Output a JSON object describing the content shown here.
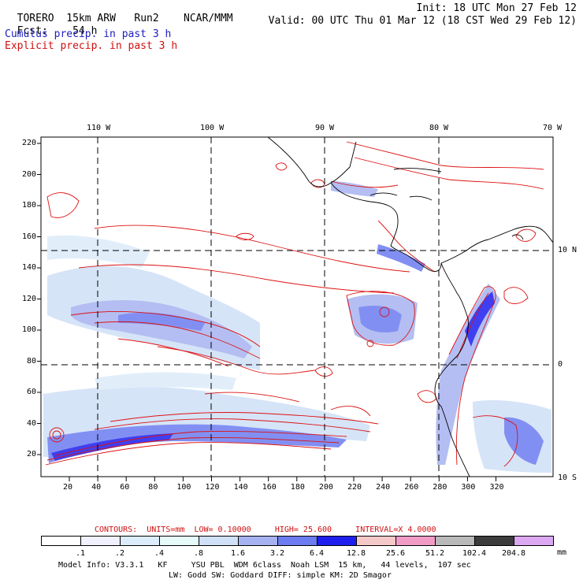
{
  "header": {
    "model": "TORERO",
    "resolution": "15km ARW",
    "run": "Run2",
    "org": "NCAR/MMM",
    "init_text": "Init: 18 UTC Mon 27 Feb 12",
    "fcst_label": "Fcst:",
    "fcst_value": "54 h",
    "valid_text": "Valid: 00 UTC Thu 01 Mar 12 (18 CST Wed 29 Feb 12)"
  },
  "fields": {
    "cumulus": "Cumulus precip. in past 3 h",
    "explicit": "Explicit precip. in past 3 h"
  },
  "axes": {
    "lon_labels": [
      "110 W",
      "100 W",
      "90 W",
      "80 W",
      "70 W"
    ],
    "lat_labels": [
      "10 N",
      "0",
      "10 S"
    ],
    "x_ticks": [
      "20",
      "40",
      "60",
      "80",
      "100",
      "120",
      "140",
      "160",
      "180",
      "200",
      "220",
      "240",
      "260",
      "280",
      "300",
      "320"
    ],
    "y_ticks": [
      "220",
      "200",
      "180",
      "160",
      "140",
      "120",
      "100",
      "80",
      "60",
      "40",
      "20"
    ]
  },
  "contours": {
    "label": "CONTOURS:",
    "units": "UNITS=mm",
    "low": "LOW= 0.10000",
    "high": "HIGH= 25.600",
    "interval": "INTERVAL=X 4.0000"
  },
  "legend": {
    "labels": [
      ".1",
      ".2",
      ".4",
      ".8",
      "1.6",
      "3.2",
      "6.4",
      "12.8",
      "25.6",
      "51.2",
      "102.4",
      "204.8"
    ],
    "unit": "mm",
    "colors": [
      "#ffffff",
      "#f0f0ff",
      "#dcecfa",
      "#e6fafa",
      "#cfe0f7",
      "#a7b3f0",
      "#6d7cf0",
      "#1e1eef",
      "#f6c9c9",
      "#f09cc7",
      "#b9b9b9",
      "#3c3c3c",
      "#dca8f2"
    ]
  },
  "footer": {
    "line1": "Model Info: V3.3.1   KF     YSU PBL  WDM 6class  Noah LSM  15 km,   44 levels,  107 sec",
    "line2": "LW: Godd SW: Goddard DIFF: simple KM: 2D Smagor"
  }
}
